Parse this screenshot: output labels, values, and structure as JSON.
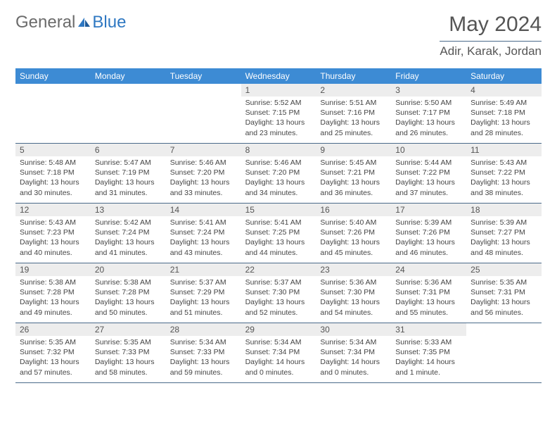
{
  "logo": {
    "part1": "General",
    "part2": "Blue"
  },
  "title": "May 2024",
  "location": "Adir, Karak, Jordan",
  "colors": {
    "header_bg": "#3d8bd4",
    "daynum_bg": "#ededed",
    "divider": "#4a6a8a",
    "text": "#3a3a3a"
  },
  "weekdays": [
    "Sunday",
    "Monday",
    "Tuesday",
    "Wednesday",
    "Thursday",
    "Friday",
    "Saturday"
  ],
  "days": [
    null,
    null,
    null,
    {
      "n": "1",
      "sr": "5:52 AM",
      "ss": "7:15 PM",
      "dl": "13 hours and 23 minutes."
    },
    {
      "n": "2",
      "sr": "5:51 AM",
      "ss": "7:16 PM",
      "dl": "13 hours and 25 minutes."
    },
    {
      "n": "3",
      "sr": "5:50 AM",
      "ss": "7:17 PM",
      "dl": "13 hours and 26 minutes."
    },
    {
      "n": "4",
      "sr": "5:49 AM",
      "ss": "7:18 PM",
      "dl": "13 hours and 28 minutes."
    },
    {
      "n": "5",
      "sr": "5:48 AM",
      "ss": "7:18 PM",
      "dl": "13 hours and 30 minutes."
    },
    {
      "n": "6",
      "sr": "5:47 AM",
      "ss": "7:19 PM",
      "dl": "13 hours and 31 minutes."
    },
    {
      "n": "7",
      "sr": "5:46 AM",
      "ss": "7:20 PM",
      "dl": "13 hours and 33 minutes."
    },
    {
      "n": "8",
      "sr": "5:46 AM",
      "ss": "7:20 PM",
      "dl": "13 hours and 34 minutes."
    },
    {
      "n": "9",
      "sr": "5:45 AM",
      "ss": "7:21 PM",
      "dl": "13 hours and 36 minutes."
    },
    {
      "n": "10",
      "sr": "5:44 AM",
      "ss": "7:22 PM",
      "dl": "13 hours and 37 minutes."
    },
    {
      "n": "11",
      "sr": "5:43 AM",
      "ss": "7:22 PM",
      "dl": "13 hours and 38 minutes."
    },
    {
      "n": "12",
      "sr": "5:43 AM",
      "ss": "7:23 PM",
      "dl": "13 hours and 40 minutes."
    },
    {
      "n": "13",
      "sr": "5:42 AM",
      "ss": "7:24 PM",
      "dl": "13 hours and 41 minutes."
    },
    {
      "n": "14",
      "sr": "5:41 AM",
      "ss": "7:24 PM",
      "dl": "13 hours and 43 minutes."
    },
    {
      "n": "15",
      "sr": "5:41 AM",
      "ss": "7:25 PM",
      "dl": "13 hours and 44 minutes."
    },
    {
      "n": "16",
      "sr": "5:40 AM",
      "ss": "7:26 PM",
      "dl": "13 hours and 45 minutes."
    },
    {
      "n": "17",
      "sr": "5:39 AM",
      "ss": "7:26 PM",
      "dl": "13 hours and 46 minutes."
    },
    {
      "n": "18",
      "sr": "5:39 AM",
      "ss": "7:27 PM",
      "dl": "13 hours and 48 minutes."
    },
    {
      "n": "19",
      "sr": "5:38 AM",
      "ss": "7:28 PM",
      "dl": "13 hours and 49 minutes."
    },
    {
      "n": "20",
      "sr": "5:38 AM",
      "ss": "7:28 PM",
      "dl": "13 hours and 50 minutes."
    },
    {
      "n": "21",
      "sr": "5:37 AM",
      "ss": "7:29 PM",
      "dl": "13 hours and 51 minutes."
    },
    {
      "n": "22",
      "sr": "5:37 AM",
      "ss": "7:30 PM",
      "dl": "13 hours and 52 minutes."
    },
    {
      "n": "23",
      "sr": "5:36 AM",
      "ss": "7:30 PM",
      "dl": "13 hours and 54 minutes."
    },
    {
      "n": "24",
      "sr": "5:36 AM",
      "ss": "7:31 PM",
      "dl": "13 hours and 55 minutes."
    },
    {
      "n": "25",
      "sr": "5:35 AM",
      "ss": "7:31 PM",
      "dl": "13 hours and 56 minutes."
    },
    {
      "n": "26",
      "sr": "5:35 AM",
      "ss": "7:32 PM",
      "dl": "13 hours and 57 minutes."
    },
    {
      "n": "27",
      "sr": "5:35 AM",
      "ss": "7:33 PM",
      "dl": "13 hours and 58 minutes."
    },
    {
      "n": "28",
      "sr": "5:34 AM",
      "ss": "7:33 PM",
      "dl": "13 hours and 59 minutes."
    },
    {
      "n": "29",
      "sr": "5:34 AM",
      "ss": "7:34 PM",
      "dl": "14 hours and 0 minutes."
    },
    {
      "n": "30",
      "sr": "5:34 AM",
      "ss": "7:34 PM",
      "dl": "14 hours and 0 minutes."
    },
    {
      "n": "31",
      "sr": "5:33 AM",
      "ss": "7:35 PM",
      "dl": "14 hours and 1 minute."
    },
    null
  ],
  "labels": {
    "sunrise": "Sunrise:",
    "sunset": "Sunset:",
    "daylight": "Daylight:"
  }
}
